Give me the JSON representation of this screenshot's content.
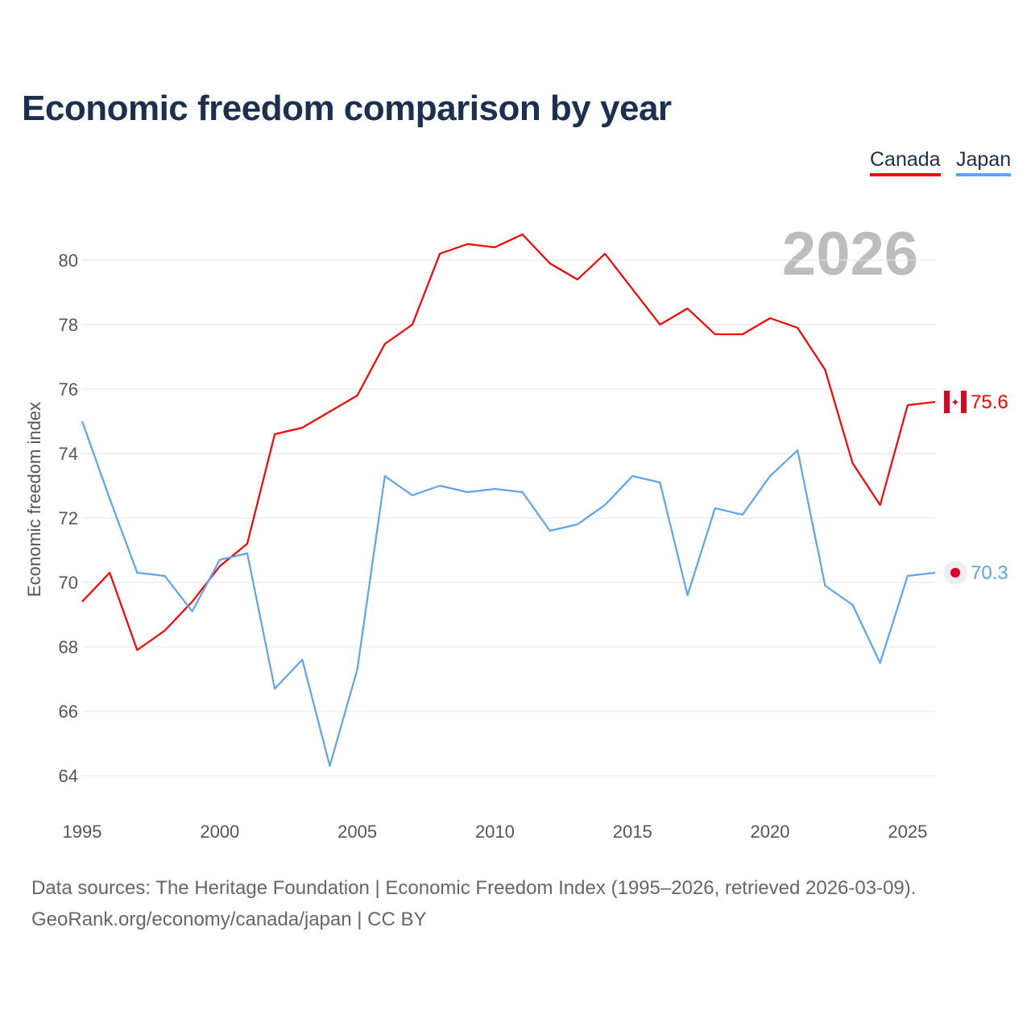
{
  "title": "Economic freedom comparison by year",
  "footer": {
    "line1": "Data sources: The Heritage Foundation | Economic Freedom Index (1995–2026, retrieved 2026-03-09).",
    "line2": "GeoRank.org/economy/canada/japan | CC BY"
  },
  "chart_data": {
    "type": "line",
    "title": "Economic freedom comparison by year",
    "ylabel": "Economic freedom index",
    "xlabel": "",
    "watermark_year": "2026",
    "x": [
      1995,
      1996,
      1997,
      1998,
      1999,
      2000,
      2001,
      2002,
      2003,
      2004,
      2005,
      2006,
      2007,
      2008,
      2009,
      2010,
      2011,
      2012,
      2013,
      2014,
      2015,
      2016,
      2017,
      2018,
      2019,
      2020,
      2021,
      2022,
      2023,
      2024,
      2025,
      2026
    ],
    "xlim": [
      1995,
      2026
    ],
    "ylim": [
      63,
      82.5
    ],
    "xticks": [
      1995,
      2000,
      2005,
      2010,
      2015,
      2020,
      2025
    ],
    "yticks": [
      64,
      66,
      68,
      70,
      72,
      74,
      76,
      78,
      80
    ],
    "grid": true,
    "legend_position": "top-right",
    "series": [
      {
        "name": "Canada",
        "color": "#ff0000",
        "end_label": "75.6",
        "values": [
          69.4,
          70.3,
          67.9,
          68.5,
          69.4,
          70.5,
          71.2,
          74.6,
          74.8,
          75.3,
          75.8,
          77.4,
          78.0,
          80.2,
          80.5,
          80.4,
          80.8,
          79.9,
          79.4,
          80.2,
          79.1,
          78.0,
          78.5,
          77.7,
          77.7,
          78.2,
          77.9,
          76.6,
          73.7,
          72.4,
          75.5,
          75.6
        ]
      },
      {
        "name": "Japan",
        "color": "#5ba4ef",
        "end_label": "70.3",
        "values": [
          75.0,
          72.6,
          70.3,
          70.2,
          69.1,
          70.7,
          70.9,
          66.7,
          67.6,
          64.3,
          67.3,
          73.3,
          72.7,
          73.0,
          72.8,
          72.9,
          72.8,
          71.6,
          71.8,
          72.4,
          73.3,
          73.1,
          69.6,
          72.3,
          72.1,
          73.3,
          74.1,
          69.9,
          69.3,
          67.5,
          70.2,
          70.3
        ]
      }
    ]
  }
}
